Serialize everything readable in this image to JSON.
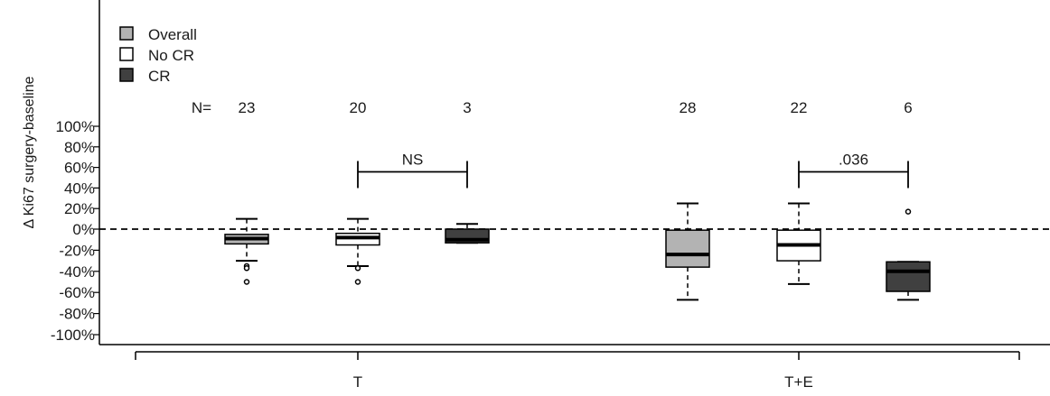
{
  "chart_data": {
    "type": "box",
    "ylabel": "Δ Ki67 surgery-baseline",
    "xlabel": "",
    "ylim": [
      -100,
      100
    ],
    "yticks": [
      100,
      80,
      60,
      40,
      20,
      0,
      -20,
      -40,
      -60,
      -80,
      -100
    ],
    "ytick_labels": [
      "100%",
      "80%",
      "60%",
      "40%",
      "20%",
      "0%",
      "-20%",
      "-40%",
      "-60%",
      "-80%",
      "-100%"
    ],
    "reference_line": 0,
    "n_label": "N=",
    "legend": [
      {
        "name": "Overall",
        "color": "#b3b3b3"
      },
      {
        "name": "No CR",
        "color": "#ffffff"
      },
      {
        "name": "CR",
        "color": "#404040"
      }
    ],
    "groups": [
      {
        "label": "T",
        "boxes": [
          {
            "series": "Overall",
            "n": "23",
            "whisker_low": -30,
            "q1": -14,
            "median": -9,
            "q3": -5,
            "whisker_high": 10,
            "outliers": [
              -35,
              -37,
              -50
            ]
          },
          {
            "series": "No CR",
            "n": "20",
            "whisker_low": -35,
            "q1": -15,
            "median": -8,
            "q3": -4,
            "whisker_high": 10,
            "outliers": [
              -37,
              -50
            ]
          },
          {
            "series": "CR",
            "n": "3",
            "whisker_low": -13,
            "q1": -13,
            "median": -10,
            "q3": 0,
            "whisker_high": 5,
            "outliers": []
          }
        ],
        "comparison": {
          "label": "NS",
          "from": "No CR",
          "to": "CR",
          "y": 68
        }
      },
      {
        "label": "T+E",
        "boxes": [
          {
            "series": "Overall",
            "n": "28",
            "whisker_low": -67,
            "q1": -36,
            "median": -24,
            "q3": -1,
            "whisker_high": 25,
            "outliers": []
          },
          {
            "series": "No CR",
            "n": "22",
            "whisker_low": -52,
            "q1": -30,
            "median": -15,
            "q3": -1,
            "whisker_high": 25,
            "outliers": []
          },
          {
            "series": "CR",
            "n": "6",
            "whisker_low": -67,
            "q1": -59,
            "median": -40,
            "q3": -31,
            "whisker_high": -31,
            "outliers": [
              17
            ]
          }
        ],
        "comparison": {
          "label": ".036",
          "from": "No CR",
          "to": "CR",
          "y": 68
        }
      }
    ]
  }
}
